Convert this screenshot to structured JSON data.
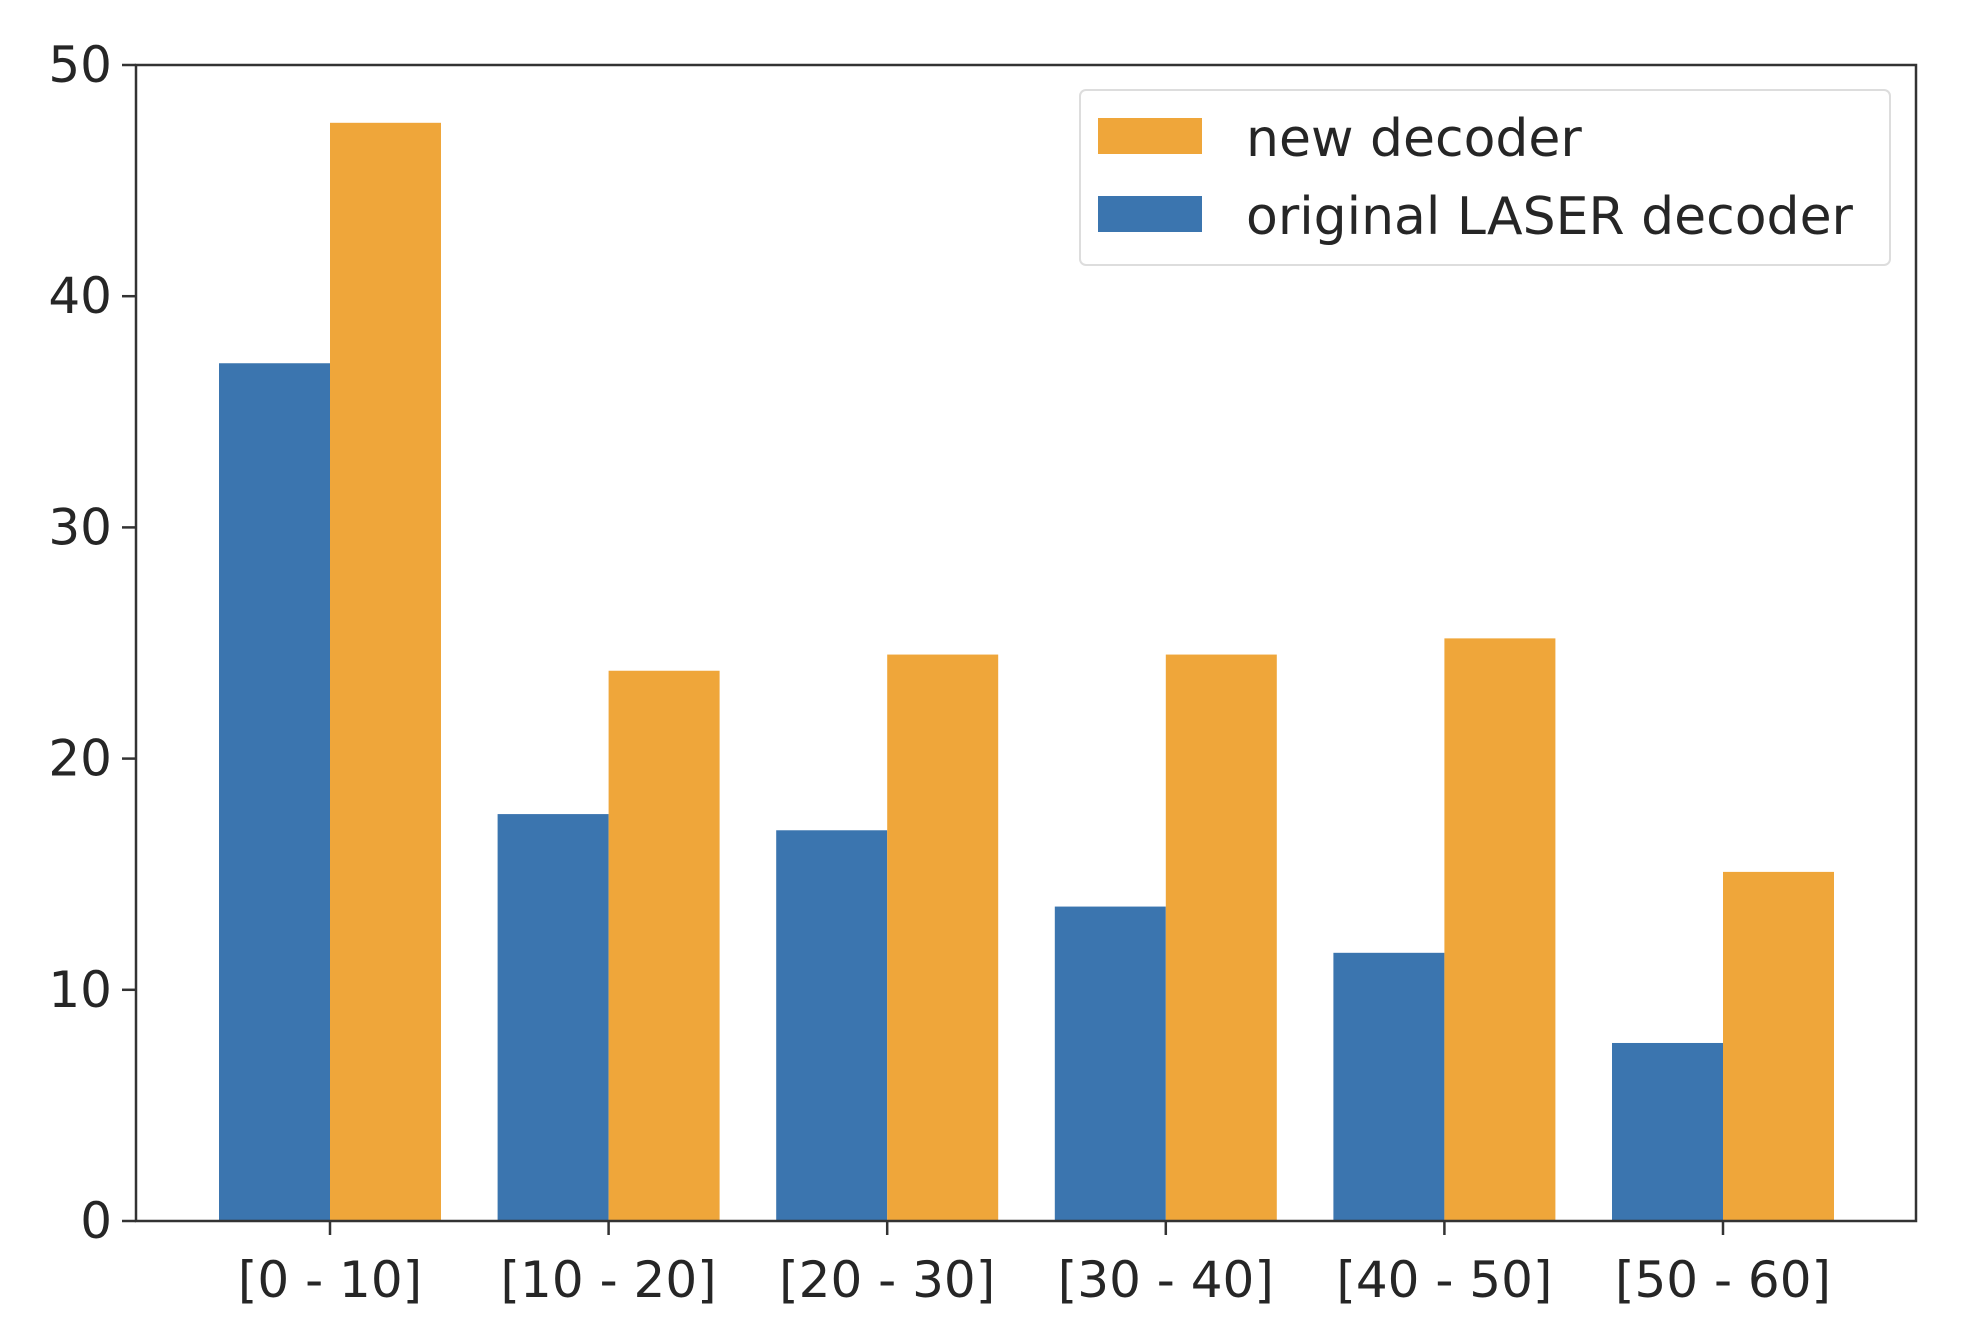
{
  "chart_data": {
    "type": "bar",
    "title": "",
    "xlabel": "",
    "ylabel": "",
    "categories": [
      "[0 - 10]",
      "[10 - 20]",
      "[20 - 30]",
      "[30 - 40]",
      "[40 - 50]",
      "[50 - 60]"
    ],
    "series": [
      {
        "name": "original LASER decoder",
        "values": [
          37.1,
          17.6,
          16.9,
          13.6,
          11.6,
          7.7
        ],
        "color": "#3b75af"
      },
      {
        "name": "new decoder",
        "values": [
          47.5,
          23.8,
          24.5,
          24.5,
          25.2,
          15.1
        ],
        "color": "#efa63a"
      }
    ],
    "ylim": [
      0,
      50
    ],
    "yticks": [
      "0",
      "10",
      "20",
      "30",
      "40",
      "50"
    ],
    "grid": false,
    "legend": {
      "position": "top-right",
      "entries": [
        {
          "label": "new decoder",
          "color": "#efa63a"
        },
        {
          "label": "original LASER decoder",
          "color": "#3b75af"
        }
      ]
    }
  }
}
